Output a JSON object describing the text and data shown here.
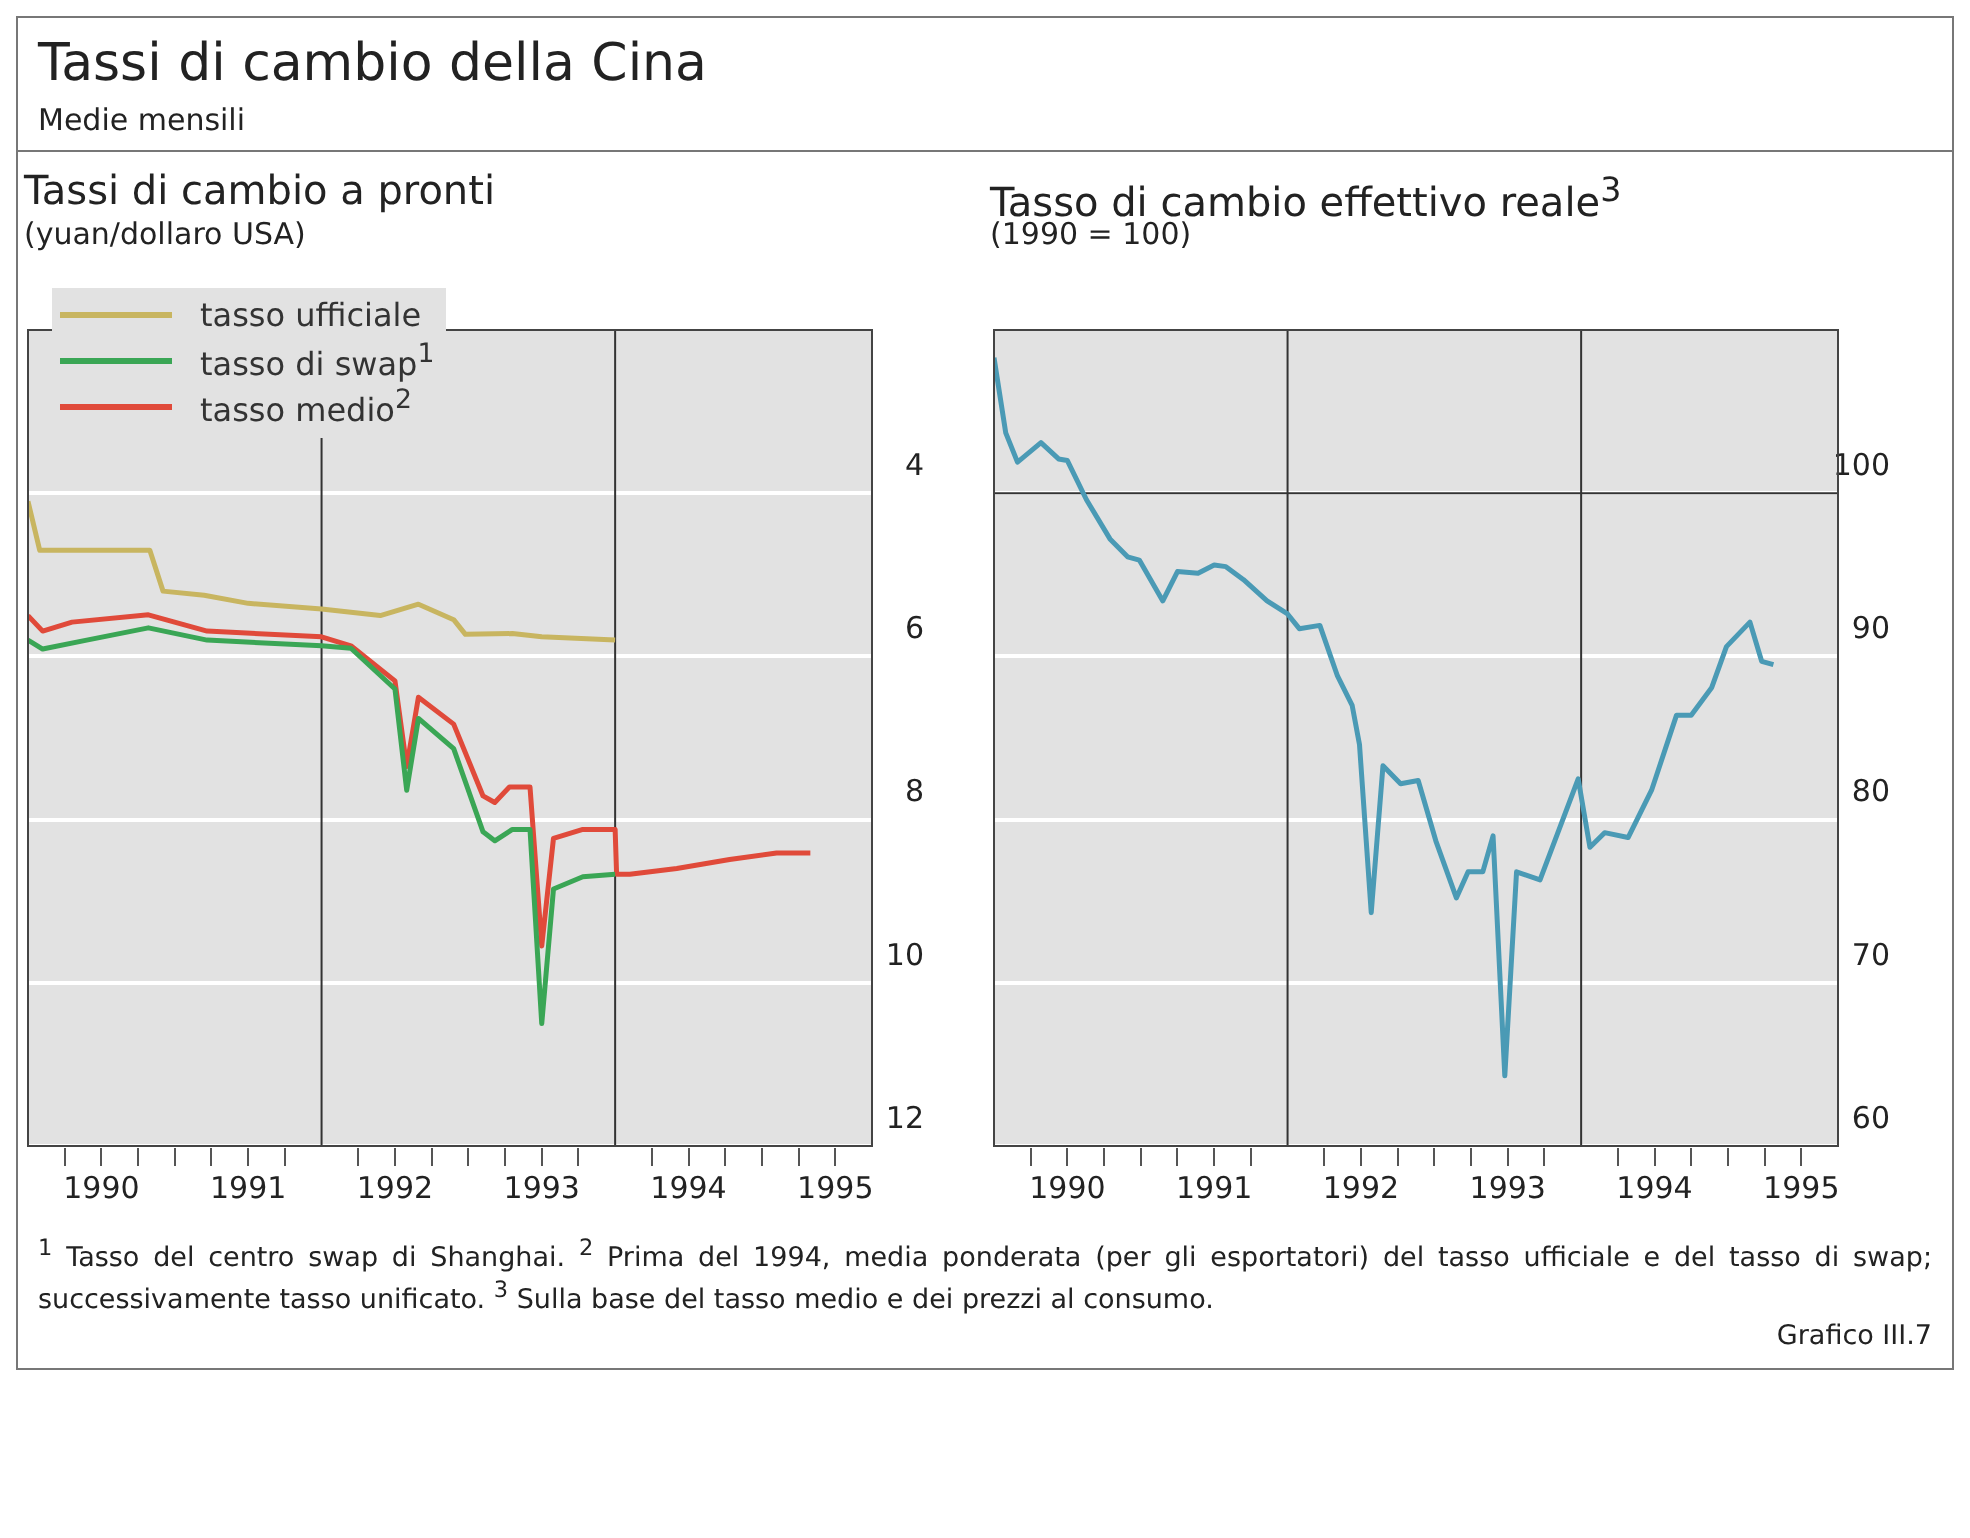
{
  "chart_data": [
    {
      "type": "line",
      "title": "Tassi di cambio a pronti",
      "ylabel": "(yuan/dollaro USA)",
      "annotations": [
        "Tassi di cambio della Cina",
        "Medie mensili"
      ],
      "legend": "top left",
      "grid": "y",
      "xlim": [
        1990,
        1995.75
      ],
      "ylim": [
        12,
        2
      ],
      "yticks": [
        4,
        6,
        8,
        10,
        12
      ],
      "xticks": [
        {
          "value": 1990.25,
          "label": null
        },
        {
          "value": 1990.5,
          "label": "1990"
        },
        {
          "value": 1990.75,
          "label": null
        },
        {
          "value": 1991,
          "label": null
        },
        {
          "value": 1991.25,
          "label": null
        },
        {
          "value": 1991.5,
          "label": "1991"
        },
        {
          "value": 1991.75,
          "label": null
        },
        {
          "value": 1992.25,
          "label": null
        },
        {
          "value": 1992.5,
          "label": "1992"
        },
        {
          "value": 1992.75,
          "label": null
        },
        {
          "value": 1993,
          "label": null
        },
        {
          "value": 1993.25,
          "label": null
        },
        {
          "value": 1993.5,
          "label": "1993"
        },
        {
          "value": 1993.75,
          "label": null
        },
        {
          "value": 1994.25,
          "label": null
        },
        {
          "value": 1994.5,
          "label": "1994"
        },
        {
          "value": 1994.75,
          "label": null
        },
        {
          "value": 1995,
          "label": null
        },
        {
          "value": 1995.25,
          "label": null
        },
        {
          "value": 1995.5,
          "label": "1995"
        }
      ],
      "ref_lines": [
        {
          "axis": "x",
          "value": 1992,
          "color": "#333333"
        },
        {
          "axis": "x",
          "value": 1994,
          "color": "#333333"
        }
      ],
      "series": [
        {
          "name": "tasso ufficiale",
          "color": "#c8b560",
          "x": [
            1990,
            1990.08,
            1990.83,
            1990.92,
            1991.2,
            1991.5,
            1992,
            1992.4,
            1992.66,
            1992.9,
            1992.98,
            1993.3,
            1993.5,
            1994
          ],
          "values": [
            4.1,
            4.7,
            4.7,
            5.2,
            5.25,
            5.35,
            5.42,
            5.5,
            5.36,
            5.55,
            5.73,
            5.72,
            5.76,
            5.8
          ]
        },
        {
          "name": "tasso di swap$^{1}$",
          "color": "#3aa655",
          "x": [
            1990,
            1990.1,
            1990.4,
            1990.82,
            1991.22,
            1992,
            1992.2,
            1992.5,
            1992.58,
            1992.66,
            1992.9,
            1993.1,
            1993.18,
            1993.3,
            1993.42,
            1993.5,
            1993.58,
            1993.78,
            1994
          ],
          "values": [
            5.8,
            5.91,
            5.8,
            5.65,
            5.8,
            5.87,
            5.9,
            6.4,
            7.64,
            6.76,
            7.13,
            8.15,
            8.26,
            8.12,
            8.12,
            10.5,
            8.85,
            8.7,
            8.67
          ]
        },
        {
          "name": "tasso medio$^{2}$",
          "color": "#e04a3a",
          "x": [
            1990,
            1990.1,
            1990.3,
            1990.82,
            1991.22,
            1992,
            1992.2,
            1992.5,
            1992.58,
            1992.66,
            1992.9,
            1993.1,
            1993.18,
            1993.28,
            1993.42,
            1993.5,
            1993.58,
            1993.78,
            1994,
            1994.01,
            1994.1,
            1994.42,
            1994.78,
            1995.1,
            1995.33
          ],
          "values": [
            5.5,
            5.69,
            5.58,
            5.49,
            5.69,
            5.76,
            5.87,
            6.3,
            7.35,
            6.5,
            6.83,
            7.71,
            7.79,
            7.6,
            7.6,
            9.55,
            8.23,
            8.12,
            8.12,
            8.67,
            8.67,
            8.6,
            8.49,
            8.41,
            8.41
          ]
        }
      ]
    },
    {
      "type": "line",
      "title": "Tasso di cambio effettivo reale$^{3}$",
      "ylabel": "(1990 = 100)",
      "annotations": [
        "$^{1}$ Tasso del centro swap di Shanghai.",
        "$^{2}$ Prima del 1994, media ponderata (per gli esportatori) del tasso ufficiale e del tasso di swap; successivamente tasso unificato.",
        "$^{3}$ Sulla base del tasso medio e dei prezzi al consumo.",
        "Grafico III.7"
      ],
      "grid": "y",
      "xlim": [
        1990,
        1995.75
      ],
      "ylim": [
        60,
        110
      ],
      "yticks": [
        60,
        70,
        80,
        90,
        100
      ],
      "xticks": [
        {
          "value": 1990.25,
          "label": null
        },
        {
          "value": 1990.5,
          "label": "1990"
        },
        {
          "value": 1990.75,
          "label": null
        },
        {
          "value": 1991,
          "label": null
        },
        {
          "value": 1991.25,
          "label": null
        },
        {
          "value": 1991.5,
          "label": "1991"
        },
        {
          "value": 1991.75,
          "label": null
        },
        {
          "value": 1992.25,
          "label": null
        },
        {
          "value": 1992.5,
          "label": "1992"
        },
        {
          "value": 1992.75,
          "label": null
        },
        {
          "value": 1993,
          "label": null
        },
        {
          "value": 1993.25,
          "label": null
        },
        {
          "value": 1993.5,
          "label": "1993"
        },
        {
          "value": 1993.75,
          "label": null
        },
        {
          "value": 1994.25,
          "label": null
        },
        {
          "value": 1994.5,
          "label": "1994"
        },
        {
          "value": 1994.75,
          "label": null
        },
        {
          "value": 1995,
          "label": null
        },
        {
          "value": 1995.25,
          "label": null
        },
        {
          "value": 1995.5,
          "label": "1995"
        }
      ],
      "ref_lines": [
        {
          "axis": "x",
          "value": 1992,
          "color": "#333333"
        },
        {
          "axis": "x",
          "value": 1994,
          "color": "#333333"
        },
        {
          "axis": "y",
          "value": 100,
          "color": "#333333"
        }
      ],
      "series": [
        {
          "color": "#4a9ab5",
          "x": [
            1990,
            1990.08,
            1990.16,
            1990.32,
            1990.44,
            1990.5,
            1990.63,
            1990.79,
            1990.91,
            1990.99,
            1991.15,
            1991.25,
            1991.39,
            1991.5,
            1991.58,
            1991.7,
            1991.86,
            1992,
            1992.08,
            1992.22,
            1992.34,
            1992.44,
            1992.49,
            1992.57,
            1992.65,
            1992.77,
            1992.89,
            1993.01,
            1993.15,
            1993.23,
            1993.33,
            1993.4,
            1993.48,
            1993.56,
            1993.72,
            1993.98,
            1994.06,
            1994.16,
            1994.32,
            1994.48,
            1994.65,
            1994.75,
            1994.89,
            1994.99,
            1995.15,
            1995.23,
            1995.31
          ],
          "values": [
            108.3,
            103.7,
            101.9,
            103.1,
            102.1,
            102,
            99.6,
            97.2,
            96.1,
            95.9,
            93.4,
            95.2,
            95.1,
            95.6,
            95.5,
            94.7,
            93.4,
            92.6,
            91.7,
            91.9,
            88.8,
            87,
            84.6,
            74.3,
            83.3,
            82.2,
            82.4,
            78.7,
            75.2,
            76.8,
            76.8,
            79,
            64.3,
            76.8,
            76.3,
            82.5,
            78.3,
            79.2,
            78.9,
            81.8,
            86.4,
            86.4,
            88.1,
            90.6,
            92.1,
            89.7,
            89.5
          ]
        }
      ]
    }
  ]
}
